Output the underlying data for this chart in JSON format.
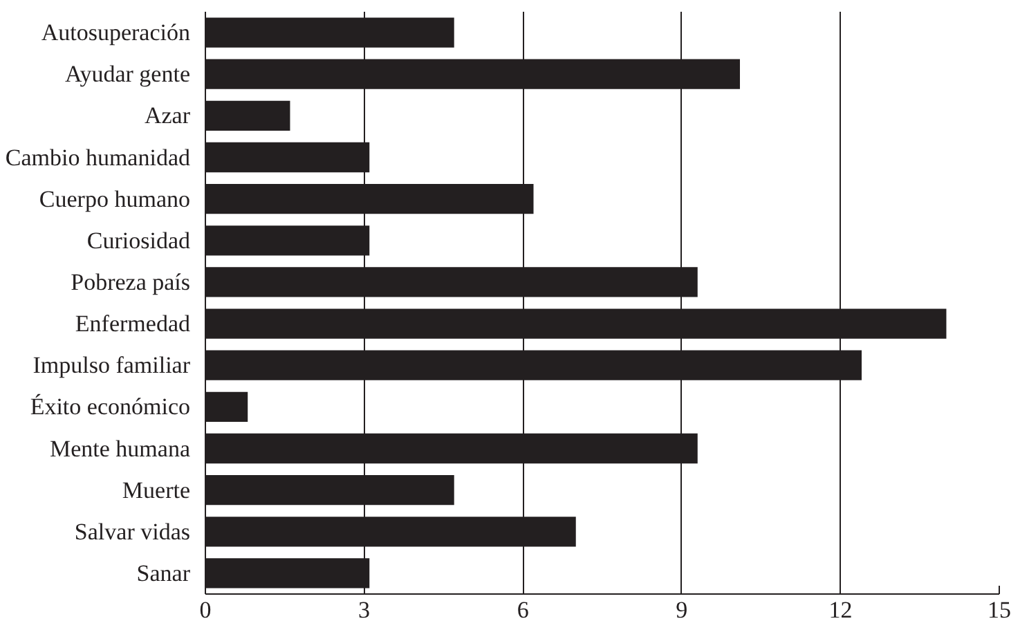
{
  "chart_data": {
    "type": "bar",
    "orientation": "horizontal",
    "categories": [
      "Autosuperación",
      "Ayudar gente",
      "Azar",
      "Cambio humanidad",
      "Cuerpo humano",
      "Curiosidad",
      "Pobreza país",
      "Enfermedad",
      "Impulso familiar",
      "Éxito económico",
      "Mente humana",
      "Muerte",
      "Salvar vidas",
      "Sanar"
    ],
    "values": [
      4.7,
      10.1,
      1.6,
      3.1,
      6.2,
      3.1,
      9.3,
      14.0,
      12.4,
      0.8,
      9.3,
      4.7,
      7.0,
      3.1
    ],
    "color": "#231f20",
    "xlim": [
      0,
      15
    ],
    "xticks": [
      0,
      3,
      6,
      9,
      12,
      15
    ],
    "grid": "x"
  }
}
